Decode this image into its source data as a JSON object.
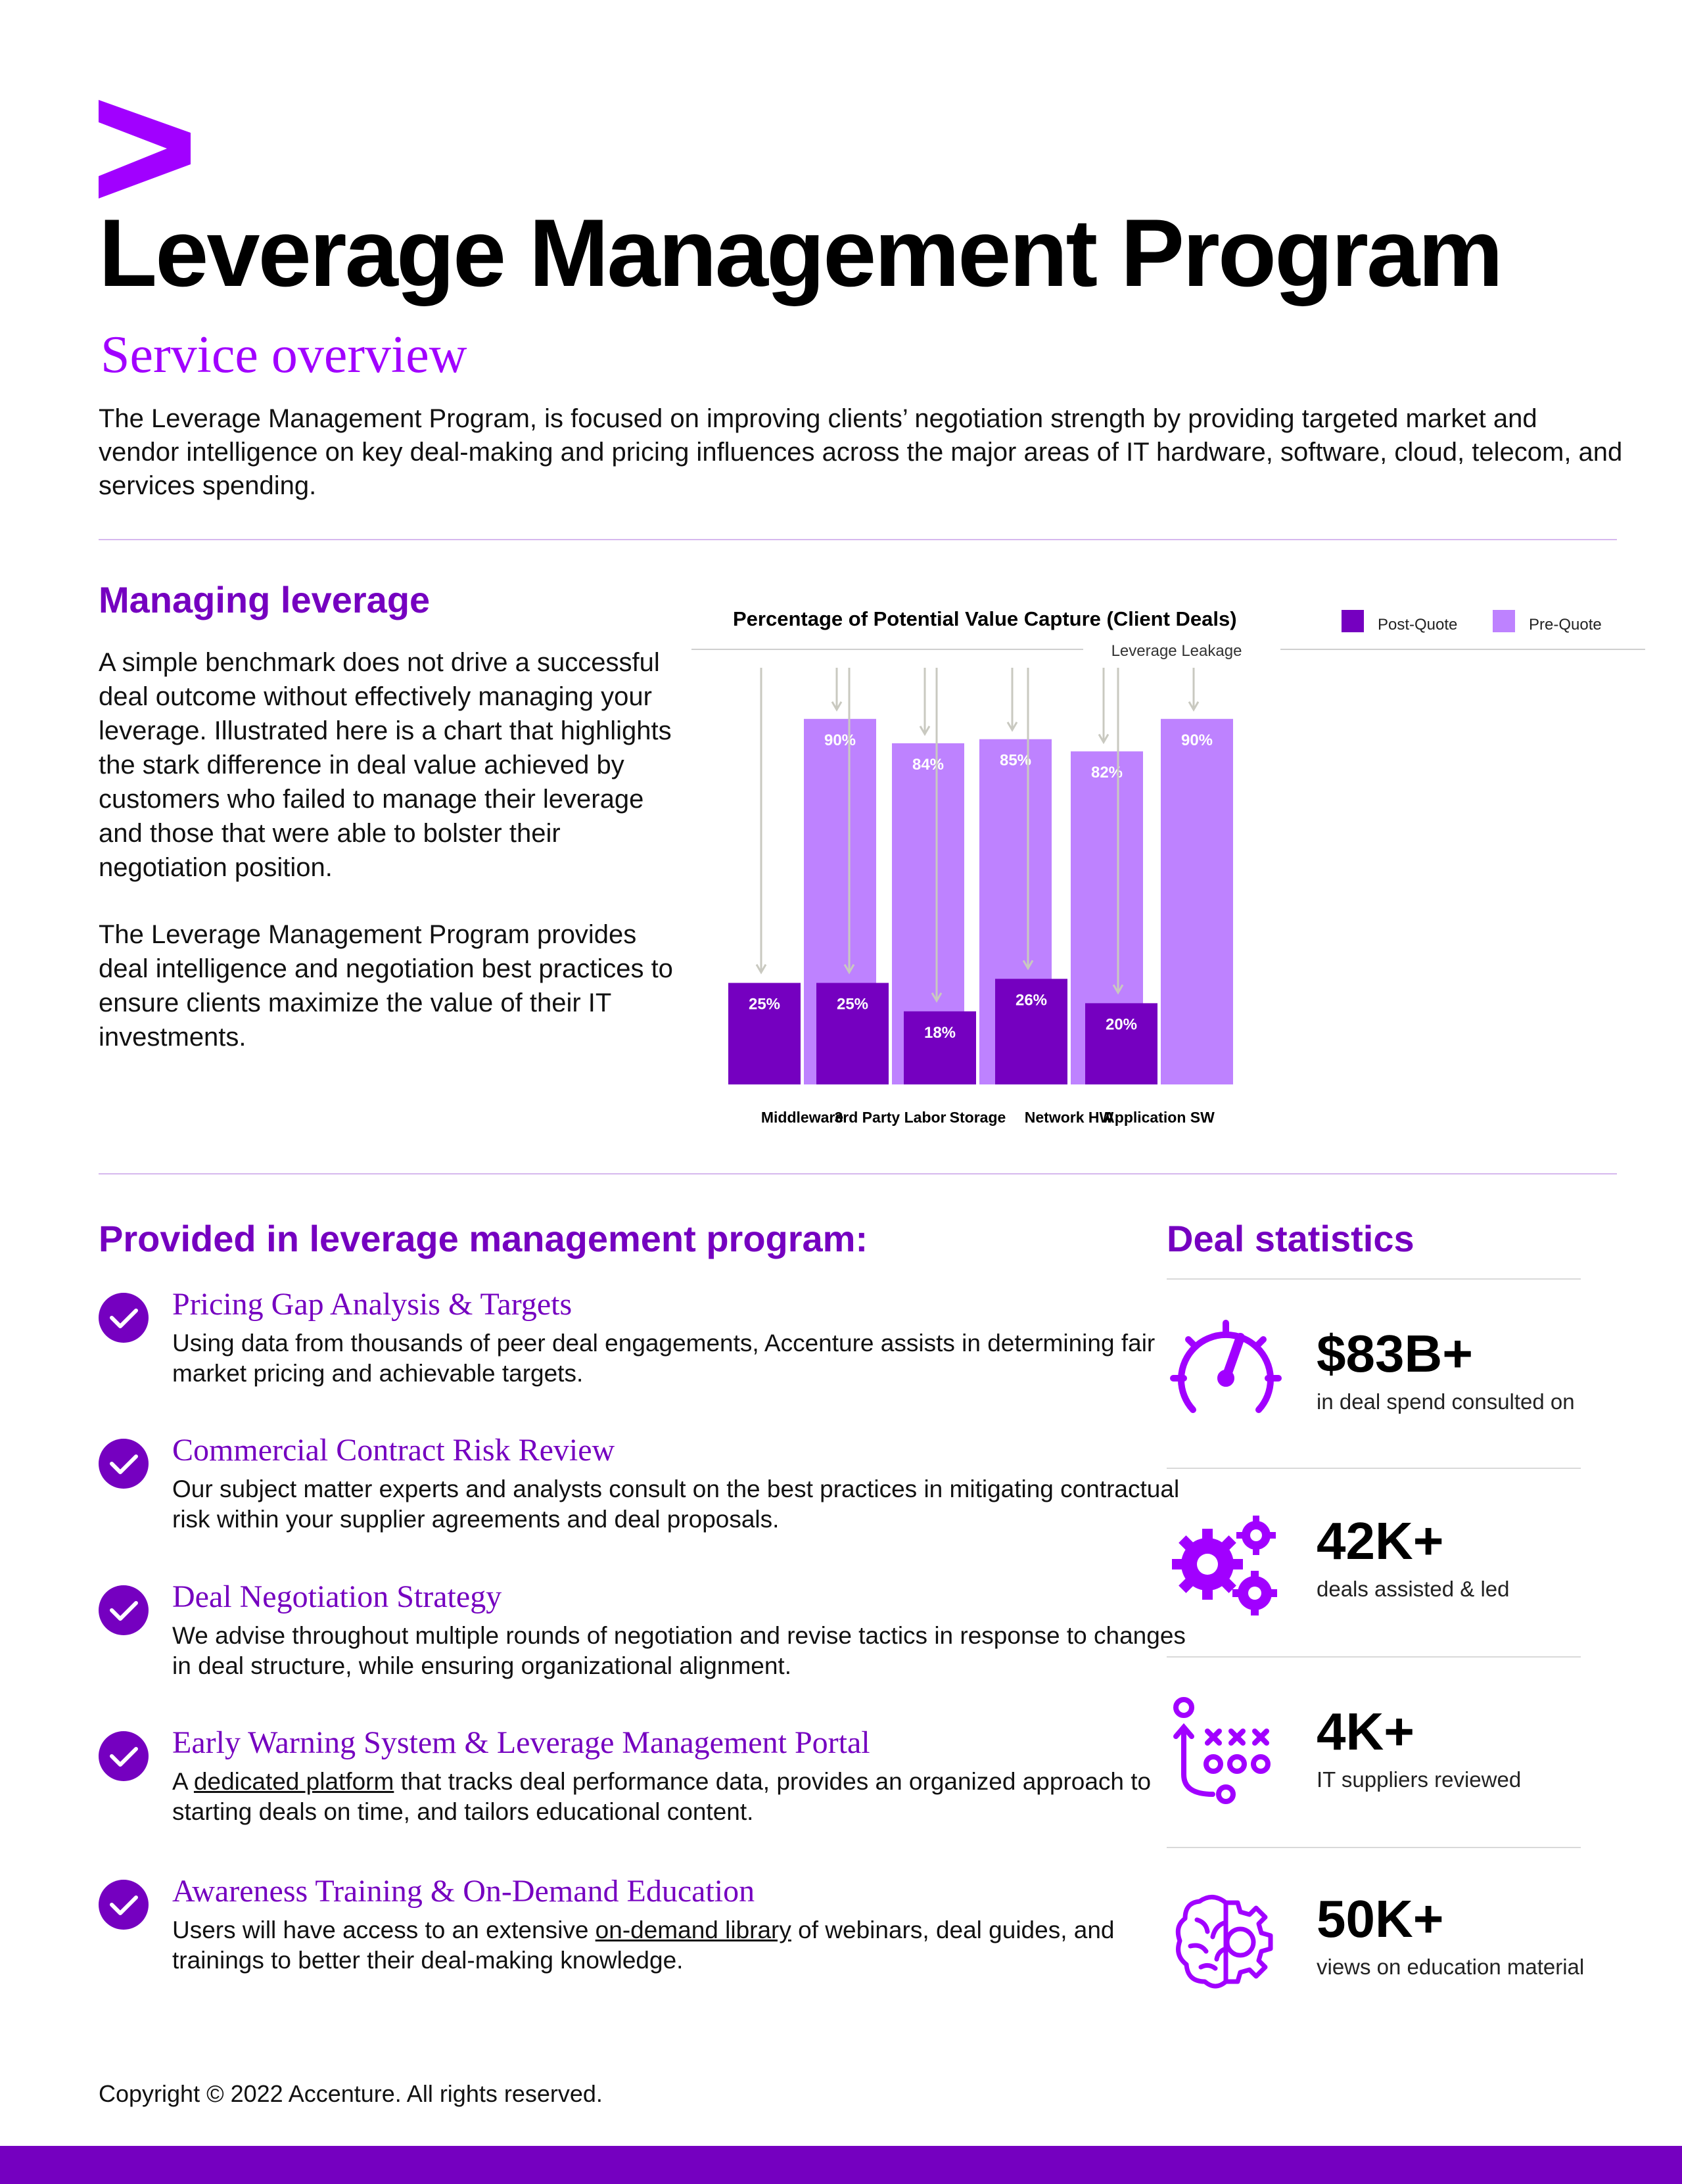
{
  "brand": {
    "accent": "#A100FF",
    "primary": "#7500C0",
    "light": "#BE82FF",
    "logo_icon": "accenture-chevron-icon"
  },
  "header": {
    "title": "Leverage Management Program",
    "subtitle": "Service overview",
    "intro": "The Leverage Management Program, is focused on improving clients’ negotiation strength by providing targeted market and vendor intelligence on key deal-making and pricing influences across the major areas of IT hardware, software, cloud, telecom, and services spending."
  },
  "managing": {
    "heading": "Managing leverage",
    "p1": "A simple benchmark does not drive a successful deal outcome without effectively managing your leverage. Illustrated here is a chart that highlights the stark difference in deal value achieved by customers who failed to manage their leverage and those that were able to bolster their negotiation position.",
    "p2": "The Leverage Management Program provides deal intelligence and negotiation best practices to ensure clients maximize the value of their IT investments."
  },
  "chart_data": {
    "type": "bar",
    "title": "Percentage of Potential Value Capture (Client Deals)",
    "annotation": "Leverage Leakage",
    "categories": [
      "Middleware",
      "3rd Party Labor",
      "Storage",
      "Network HW",
      "Application SW"
    ],
    "series": [
      {
        "name": "Post-Quote",
        "color": "#7500C0",
        "values": [
          25,
          25,
          18,
          26,
          20
        ]
      },
      {
        "name": "Pre-Quote",
        "color": "#BE82FF",
        "values": [
          90,
          84,
          85,
          82,
          90
        ]
      }
    ],
    "unit": "%",
    "ylim": [
      0,
      100
    ],
    "grid": false,
    "legend": "top-right"
  },
  "program": {
    "heading": "Provided in leverage management program:",
    "check_icon": "checkmark-circle-icon",
    "items": [
      {
        "title": "Pricing Gap Analysis & Targets",
        "desc": "Using data from thousands of peer deal engagements, Accenture assists in determining fair market pricing and achievable targets."
      },
      {
        "title": "Commercial Contract Risk Review",
        "desc": "Our subject matter experts and analysts consult on the best practices in mitigating contractual risk within your supplier agreements and deal proposals."
      },
      {
        "title": "Deal Negotiation Strategy",
        "desc": "We advise throughout multiple rounds of negotiation and revise tactics in response to changes in deal structure, while ensuring organizational alignment."
      },
      {
        "title": "Early Warning System & Leverage Management Portal",
        "desc_pre": "A ",
        "desc_link": "dedicated platform",
        "desc_post": " that tracks deal performance data, provides an organized approach to starting deals on time, and tailors educational content."
      },
      {
        "title": "Awareness Training & On-Demand Education",
        "desc_pre": "Users will have access to an extensive ",
        "desc_link": "on-demand library",
        "desc_post": " of webinars, deal guides, and trainings to better their deal-making knowledge."
      }
    ]
  },
  "stats": {
    "heading": "Deal statistics",
    "items": [
      {
        "value": "$83B+",
        "label": "in deal spend consulted on",
        "icon": "speedometer-icon"
      },
      {
        "value": "42K+",
        "label": "deals assisted & led",
        "icon": "gears-icon"
      },
      {
        "value": "4K+",
        "label": "IT suppliers reviewed",
        "icon": "strategy-playbook-icon"
      },
      {
        "value": "50K+",
        "label": "views on education material",
        "icon": "brain-gear-icon"
      }
    ]
  },
  "footer": {
    "copyright": "Copyright © 2022 Accenture. All rights reserved."
  }
}
